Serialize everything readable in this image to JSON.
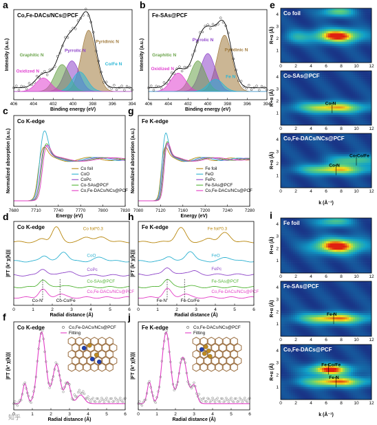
{
  "colors": {
    "pyridinic": "#a07a3c",
    "pyrrolic": "#8e44c9",
    "graphitic": "#6aa34a",
    "oxidized": "#e040d0",
    "metal_n": "#29b6d6",
    "envelope": "#000000",
    "data_points": "#333333",
    "co_foil": "#b8860b",
    "coo": "#2ab0d0",
    "copc": "#8e44c9",
    "sas": "#52b435",
    "dacs": "#e23bc5",
    "fit": "#e23bc5",
    "wt_low": "#1a2a80",
    "wt_mid": "#10a0c8",
    "wt_high": "#f0e020",
    "wt_max": "#e02010"
  },
  "watermark": "知乎",
  "chart_data": [
    {
      "id": "a",
      "panel_label": "a",
      "type": "area",
      "title": "Co,Fe-DACs/NCs@PCF",
      "xlabel": "Binding energy (eV)",
      "ylabel": "Intensity (a.u.)",
      "xlim": [
        406,
        394
      ],
      "xticks": [
        406,
        404,
        402,
        400,
        398,
        396,
        394
      ],
      "peaks": [
        {
          "name": "Pyridinic N",
          "center": 398.4,
          "height": 1.0,
          "color_key": "pyridinic"
        },
        {
          "name": "Co/Fe N",
          "center": 399.3,
          "height": 0.32,
          "color_key": "metal_n"
        },
        {
          "name": "Pyrrolic N",
          "center": 400.1,
          "height": 0.5,
          "color_key": "pyrrolic"
        },
        {
          "name": "Graphitic N",
          "center": 401.1,
          "height": 0.44,
          "color_key": "graphitic"
        },
        {
          "name": "Oxidized N",
          "center": 403.0,
          "height": 0.22,
          "color_key": "oxidized"
        }
      ]
    },
    {
      "id": "b",
      "panel_label": "b",
      "type": "area",
      "title": "Fe-SAs@PCF",
      "xlabel": "Binding energy (eV)",
      "ylabel": "Intensity (a.u.)",
      "xlim": [
        406,
        394
      ],
      "xticks": [
        406,
        404,
        402,
        400,
        398,
        396,
        394
      ],
      "peaks": [
        {
          "name": "Pyridinic N",
          "center": 398.3,
          "height": 0.92,
          "color_key": "pyridinic"
        },
        {
          "name": "Fe N",
          "center": 399.2,
          "height": 0.2,
          "color_key": "metal_n"
        },
        {
          "name": "Pyrrolic N",
          "center": 400.0,
          "height": 0.62,
          "color_key": "pyrrolic"
        },
        {
          "name": "Graphitic N",
          "center": 401.0,
          "height": 0.5,
          "color_key": "graphitic"
        },
        {
          "name": "Oxidized N",
          "center": 403.0,
          "height": 0.3,
          "color_key": "oxidized"
        }
      ]
    },
    {
      "id": "c",
      "panel_label": "c",
      "type": "line",
      "title": "Co K-edge",
      "xlabel": "Energy (eV)",
      "ylabel": "Normalized absorption (a.u.)",
      "xlim": [
        7680,
        7830
      ],
      "xticks": [
        7680,
        7710,
        7740,
        7770,
        7800,
        7830
      ],
      "legend": [
        "Co foil",
        "CoO",
        "CoPc",
        "Co-SAs@PCF",
        "Co,Fe-DACs/NCs@PCF"
      ],
      "legend_colors": [
        "co_foil",
        "coo",
        "copc",
        "sas",
        "dacs"
      ],
      "edge": 7712,
      "white_line": [
        1.25,
        1.65,
        1.3,
        1.35,
        1.32
      ]
    },
    {
      "id": "g",
      "panel_label": "g",
      "type": "line",
      "title": "Fe K-edge",
      "xlabel": "Energy (eV)",
      "ylabel": "Normalized absorption (a.u.)",
      "xlim": [
        7080,
        7280
      ],
      "xticks": [
        7080,
        7120,
        7160,
        7200,
        7240,
        7280
      ],
      "legend": [
        "Fe foil",
        "FeO",
        "FePc",
        "Fe-SAs@PCF",
        "Co,Fe-DACs/NCs@PCF"
      ],
      "legend_colors": [
        "co_foil",
        "coo",
        "copc",
        "sas",
        "dacs"
      ],
      "edge": 7120,
      "white_line": [
        1.25,
        1.6,
        1.35,
        1.4,
        1.38
      ]
    },
    {
      "id": "d",
      "panel_label": "d",
      "type": "line",
      "title": "Co K-edge",
      "xlabel": "Radial distance (Å)",
      "ylabel": "|FT (k³ χ(k))|",
      "xlim": [
        0,
        6
      ],
      "xticks": [
        0,
        1,
        2,
        3,
        4,
        5,
        6
      ],
      "series": [
        {
          "name": "Co foil*0.3",
          "color_key": "co_foil",
          "offset": 4.0,
          "peaks": [
            [
              2.2,
              1.0,
              0.22
            ],
            [
              3.8,
              0.35,
              0.25
            ],
            [
              4.6,
              0.3,
              0.3
            ],
            [
              1.5,
              0.2,
              0.2
            ]
          ]
        },
        {
          "name": "CoO",
          "color_key": "coo",
          "offset": 2.7,
          "peaks": [
            [
              1.6,
              0.4,
              0.2
            ],
            [
              2.6,
              0.65,
              0.22
            ],
            [
              4.5,
              0.25,
              0.3
            ]
          ]
        },
        {
          "name": "CoPc",
          "color_key": "copc",
          "offset": 1.75,
          "peaks": [
            [
              1.5,
              0.45,
              0.2
            ],
            [
              2.5,
              0.18,
              0.2
            ],
            [
              2.9,
              0.2,
              0.2
            ]
          ]
        },
        {
          "name": "Co-SAs@PCF",
          "color_key": "sas",
          "offset": 0.95,
          "peaks": [
            [
              1.5,
              0.5,
              0.2
            ],
            [
              2.5,
              0.12,
              0.25
            ]
          ]
        },
        {
          "name": "Co,Fe-DACs/NCs@PCF",
          "color_key": "dacs",
          "offset": 0.25,
          "peaks": [
            [
              1.5,
              0.55,
              0.2
            ],
            [
              2.4,
              0.25,
              0.22
            ]
          ]
        }
      ],
      "annotations": [
        "Co-N",
        "Co-Co/Fe"
      ]
    },
    {
      "id": "h",
      "panel_label": "h",
      "type": "line",
      "title": "Fe K-edge",
      "xlabel": "Radial distance (Å)",
      "ylabel": "|FT (k³ χ(k))|",
      "xlim": [
        0,
        6
      ],
      "xticks": [
        0,
        1,
        2,
        3,
        4,
        5,
        6
      ],
      "series": [
        {
          "name": "Fe foil*0.3",
          "color_key": "co_foil",
          "offset": 4.0,
          "peaks": [
            [
              2.2,
              0.95,
              0.25
            ],
            [
              4.5,
              0.6,
              0.28
            ],
            [
              3.7,
              0.25,
              0.2
            ]
          ]
        },
        {
          "name": "FeO",
          "color_key": "coo",
          "offset": 2.7,
          "peaks": [
            [
              1.6,
              0.35,
              0.2
            ],
            [
              2.7,
              0.7,
              0.22
            ],
            [
              4.6,
              0.25,
              0.3
            ]
          ]
        },
        {
          "name": "FePc",
          "color_key": "copc",
          "offset": 1.8,
          "peaks": [
            [
              1.5,
              0.5,
              0.2
            ],
            [
              2.5,
              0.15,
              0.2
            ],
            [
              2.9,
              0.22,
              0.2
            ]
          ]
        },
        {
          "name": "Fe-SAs@PCF",
          "color_key": "sas",
          "offset": 0.95,
          "peaks": [
            [
              1.5,
              0.55,
              0.2
            ],
            [
              2.6,
              0.1,
              0.25
            ]
          ]
        },
        {
          "name": "Co,Fe-DACs/NCs@PCF",
          "color_key": "dacs",
          "offset": 0.25,
          "peaks": [
            [
              1.5,
              0.6,
              0.2
            ],
            [
              2.4,
              0.25,
              0.22
            ]
          ]
        }
      ],
      "annotations": [
        "Fe-N",
        "Fe-Co/Fe"
      ]
    },
    {
      "id": "f",
      "panel_label": "f",
      "type": "scatter",
      "title": "Co K-edge",
      "xlabel": "Radial distance (Å)",
      "ylabel": "|FT (k³ χ(k))|",
      "xlim": [
        0,
        6
      ],
      "xticks": [
        0,
        1,
        2,
        3,
        4,
        5,
        6
      ],
      "legend": [
        "Co,Fe-DACs/NCs@PCF",
        "Fitting"
      ],
      "peaks": [
        [
          0.6,
          0.28,
          0.12
        ],
        [
          1.5,
          1.0,
          0.22
        ],
        [
          2.3,
          0.55,
          0.2
        ],
        [
          2.9,
          0.3,
          0.15
        ],
        [
          3.6,
          0.12,
          0.2
        ]
      ]
    },
    {
      "id": "j",
      "panel_label": "j",
      "type": "scatter",
      "title": "Fe K-edge",
      "xlabel": "Radial distance (Å)",
      "ylabel": "|FT (k³ χ(k))|",
      "xlim": [
        0,
        6
      ],
      "xticks": [
        0,
        1,
        2,
        3,
        4,
        5,
        6
      ],
      "legend": [
        "Co,Fe-DACs/NCs@PCF",
        "Fitting"
      ],
      "peaks": [
        [
          0.6,
          0.3,
          0.12
        ],
        [
          1.5,
          1.0,
          0.22
        ],
        [
          2.4,
          0.65,
          0.22
        ],
        [
          3.0,
          0.25,
          0.15
        ]
      ]
    },
    {
      "id": "e",
      "panel_label": "e",
      "type": "heatmap",
      "xlabel": "k (Å⁻¹)",
      "ylabel": "R+α (Å)",
      "xlim": [
        0,
        12
      ],
      "ylim": [
        0,
        4.5
      ],
      "xticks": [
        0,
        2,
        4,
        6,
        8,
        10,
        12
      ],
      "yticks": [
        1,
        2,
        3,
        4
      ],
      "maps": [
        {
          "title": "Co foil",
          "blobs": [
            [
              7.5,
              2.2,
              2.2,
              0.4,
              1.0
            ],
            [
              7.5,
              4.2,
              1.5,
              0.3,
              0.55
            ],
            [
              2.0,
              2.1,
              1.2,
              0.4,
              0.3
            ]
          ],
          "annotations": []
        },
        {
          "title": "Co-SAs@PCF",
          "blobs": [
            [
              6.8,
              1.45,
              3.2,
              0.32,
              0.8
            ]
          ],
          "annotations": [
            {
              "text": "Co-N",
              "k": 6.8,
              "r": 1.45
            }
          ]
        },
        {
          "title": "Co,Fe-DACs/NCs@PCF",
          "blobs": [
            [
              7.2,
              1.5,
              3.2,
              0.3,
              0.75
            ],
            [
              9.6,
              2.3,
              2.2,
              0.3,
              0.5
            ]
          ],
          "annotations": [
            {
              "text": "Co-N",
              "k": 7.3,
              "r": 1.5
            },
            {
              "text": "Co-Co/Fe",
              "k": 10.0,
              "r": 2.3
            }
          ]
        }
      ]
    },
    {
      "id": "i",
      "panel_label": "i",
      "type": "heatmap",
      "xlabel": "k (Å⁻¹)",
      "ylabel": "R+α (Å)",
      "xlim": [
        0,
        12
      ],
      "ylim": [
        0,
        4.5
      ],
      "xticks": [
        0,
        2,
        4,
        6,
        8,
        10,
        12
      ],
      "yticks": [
        1,
        2,
        3,
        4
      ],
      "maps": [
        {
          "title": "Fe foil",
          "blobs": [
            [
              7.5,
              2.2,
              2.3,
              0.45,
              1.0
            ],
            [
              7.0,
              4.2,
              1.6,
              0.3,
              0.5
            ]
          ],
          "annotations": []
        },
        {
          "title": "Fe-SAs@PCF",
          "blobs": [
            [
              7.0,
              1.45,
              3.2,
              0.32,
              0.85
            ]
          ],
          "annotations": [
            {
              "text": "Fe-N",
              "k": 7.0,
              "r": 1.45
            }
          ]
        },
        {
          "title": "Co,Fe-DACs@PCF",
          "blobs": [
            [
              6.5,
              2.45,
              2.0,
              0.32,
              0.95
            ],
            [
              7.2,
              1.45,
              3.0,
              0.3,
              0.85
            ]
          ],
          "annotations": [
            {
              "text": "Fe-Co/Fe",
              "k": 6.3,
              "r": 2.5
            },
            {
              "text": "Fe-N",
              "k": 7.3,
              "r": 1.45
            }
          ]
        }
      ]
    }
  ]
}
